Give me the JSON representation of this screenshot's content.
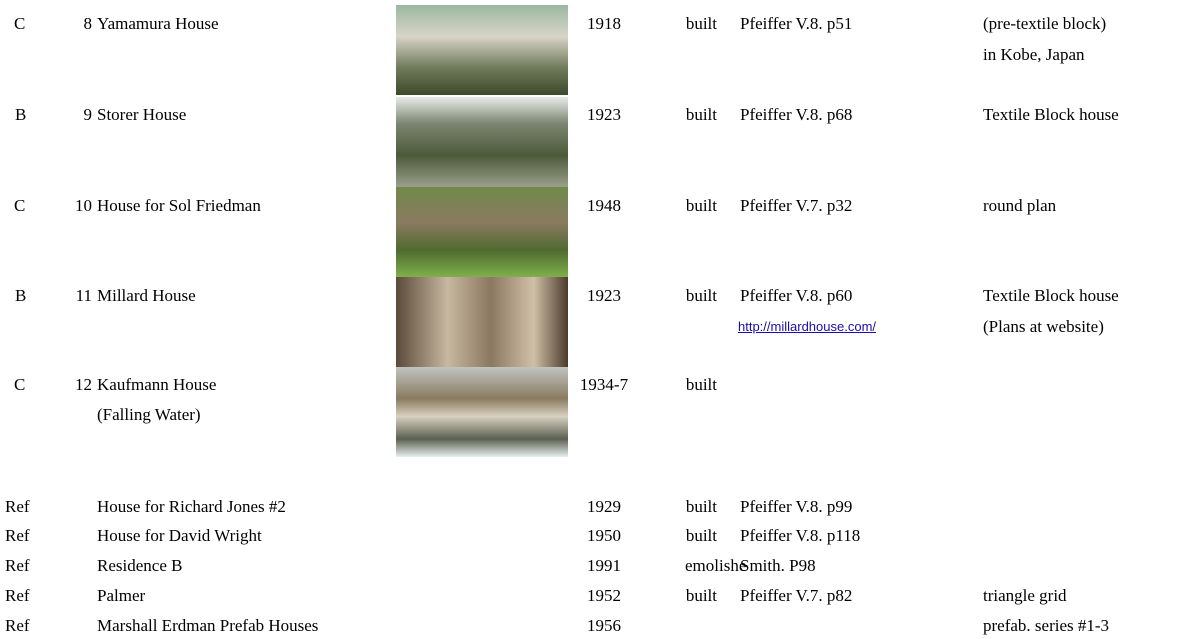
{
  "rows": [
    {
      "grade": "C",
      "number": "8",
      "name": [
        "Yamamura House"
      ],
      "year": "1918",
      "status": "built",
      "ref": "Pfeiffer V.8. p51",
      "note": [
        "(pre-textile block)",
        "in Kobe, Japan"
      ],
      "photo": true
    },
    {
      "grade": "B",
      "number": "9",
      "name": [
        "Storer House"
      ],
      "year": "1923",
      "status": "built",
      "ref": "Pfeiffer V.8. p68",
      "note": [
        "Textile Block house"
      ],
      "photo": true
    },
    {
      "grade": "C",
      "number": "10",
      "name": [
        "House for Sol Friedman"
      ],
      "year": "1948",
      "status": "built",
      "ref": "Pfeiffer V.7. p32",
      "note": [
        "round plan"
      ],
      "photo": true
    },
    {
      "grade": "B",
      "number": "11",
      "name": [
        "Millard House"
      ],
      "year": "1923",
      "status": "built",
      "ref": "Pfeiffer V.8. p60",
      "link": "http://millardhouse.com/",
      "note": [
        "Textile Block house",
        "(Plans at website)"
      ],
      "photo": true
    },
    {
      "grade": "C",
      "number": "12",
      "name": [
        "Kaufmann House",
        "(Falling Water)"
      ],
      "year": "1934-7",
      "status": "built",
      "photo": true
    },
    {
      "grade": "Ref",
      "name": [
        "House for Richard Jones #2"
      ],
      "year": "1929",
      "status": "built",
      "ref": "Pfeiffer V.8. p99"
    },
    {
      "grade": "Ref",
      "name": [
        "House for David Wright"
      ],
      "year": "1950",
      "status": "built",
      "ref": "Pfeiffer V.8. p118"
    },
    {
      "grade": "Ref",
      "name": [
        "Residence B"
      ],
      "year": "1991",
      "status": "emolishe",
      "ref": "Smith. P98"
    },
    {
      "grade": "Ref",
      "name": [
        "Palmer"
      ],
      "year": "1952",
      "status": "built",
      "ref": "Pfeiffer V.7. p82",
      "note": [
        "triangle grid"
      ]
    },
    {
      "grade": "Ref",
      "name": [
        "Marshall Erdman Prefab Houses"
      ],
      "year": "1956",
      "note": [
        "prefab. series #1-3"
      ]
    }
  ]
}
